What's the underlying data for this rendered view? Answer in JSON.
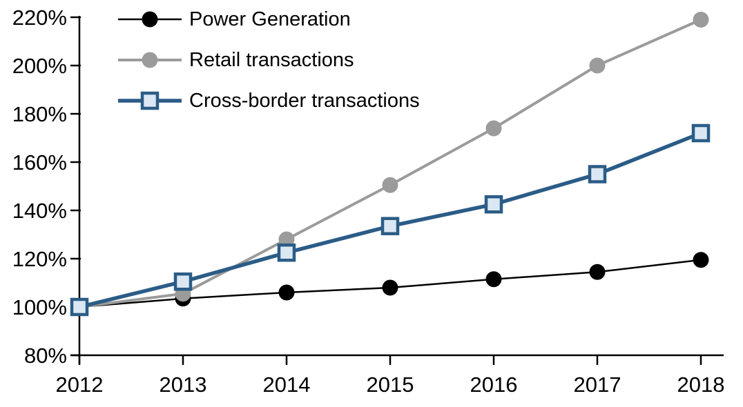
{
  "chart_data": {
    "type": "line",
    "x_categories": [
      "2012",
      "2013",
      "2014",
      "2015",
      "2016",
      "2017",
      "2018"
    ],
    "series": [
      {
        "name": "Power Generation",
        "color": "#000000",
        "marker": "circle",
        "marker_fill": "#000000",
        "line_width": 2.5,
        "values": [
          100,
          103.5,
          106,
          108,
          111.5,
          114.5,
          119.5
        ]
      },
      {
        "name": "Retail transactions",
        "color": "#9B9B9B",
        "marker": "circle",
        "marker_fill": "#9B9B9B",
        "line_width": 4,
        "values": [
          100,
          105.5,
          128,
          150.5,
          174,
          200,
          219
        ]
      },
      {
        "name": "Cross-border transactions",
        "color": "#2B5C87",
        "marker": "square",
        "marker_fill": "#DBE7F3",
        "line_width": 5.5,
        "values": [
          100,
          110.5,
          122.5,
          133.5,
          142.5,
          155,
          172
        ]
      }
    ],
    "yticks": [
      {
        "value": 220,
        "label": "220%"
      },
      {
        "value": 200,
        "label": "200%"
      },
      {
        "value": 180,
        "label": "180%"
      },
      {
        "value": 160,
        "label": "160%"
      },
      {
        "value": 140,
        "label": "140%"
      },
      {
        "value": 120,
        "label": "120%"
      },
      {
        "value": 100,
        "label": "100%"
      },
      {
        "value": 80,
        "label": "80%"
      }
    ],
    "title": "",
    "xlabel": "",
    "ylabel": "",
    "ylim": [
      80,
      220
    ],
    "grid": false,
    "legend_position": "top-left",
    "axis_color": "#000000",
    "background_color": "#ffffff"
  }
}
